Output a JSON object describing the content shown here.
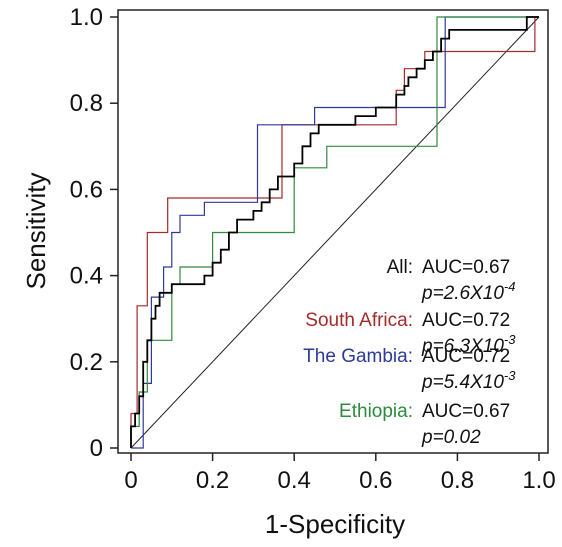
{
  "chart_data": {
    "type": "line",
    "title": "",
    "xlabel": "1-Specificity",
    "ylabel": "Sensitivity",
    "xlim": [
      0,
      1
    ],
    "ylim": [
      0,
      1
    ],
    "x_ticks": [
      "0",
      "0.2",
      "0.4",
      "0.6",
      "0.8",
      "1.0"
    ],
    "y_ticks": [
      "0",
      "0.2",
      "0.4",
      "0.6",
      "0.8",
      "1.0"
    ],
    "grid": false,
    "legend_position": "bottom-right",
    "series": [
      {
        "name": "All",
        "color": "#000000",
        "auc": "AUC=0.67",
        "p_base": "p=2.6X10",
        "p_exp": "-4",
        "points": [
          [
            0,
            0
          ],
          [
            0,
            0.05
          ],
          [
            0.01,
            0.05
          ],
          [
            0.01,
            0.08
          ],
          [
            0.02,
            0.08
          ],
          [
            0.02,
            0.12
          ],
          [
            0.03,
            0.12
          ],
          [
            0.03,
            0.2
          ],
          [
            0.04,
            0.2
          ],
          [
            0.04,
            0.25
          ],
          [
            0.05,
            0.25
          ],
          [
            0.05,
            0.3
          ],
          [
            0.06,
            0.3
          ],
          [
            0.06,
            0.33
          ],
          [
            0.07,
            0.33
          ],
          [
            0.07,
            0.36
          ],
          [
            0.1,
            0.36
          ],
          [
            0.1,
            0.38
          ],
          [
            0.18,
            0.38
          ],
          [
            0.18,
            0.4
          ],
          [
            0.2,
            0.4
          ],
          [
            0.2,
            0.43
          ],
          [
            0.22,
            0.43
          ],
          [
            0.22,
            0.46
          ],
          [
            0.24,
            0.46
          ],
          [
            0.24,
            0.5
          ],
          [
            0.26,
            0.5
          ],
          [
            0.26,
            0.53
          ],
          [
            0.3,
            0.53
          ],
          [
            0.3,
            0.55
          ],
          [
            0.32,
            0.55
          ],
          [
            0.32,
            0.57
          ],
          [
            0.34,
            0.57
          ],
          [
            0.34,
            0.6
          ],
          [
            0.36,
            0.6
          ],
          [
            0.36,
            0.63
          ],
          [
            0.4,
            0.63
          ],
          [
            0.4,
            0.66
          ],
          [
            0.42,
            0.66
          ],
          [
            0.42,
            0.7
          ],
          [
            0.44,
            0.7
          ],
          [
            0.44,
            0.73
          ],
          [
            0.46,
            0.73
          ],
          [
            0.46,
            0.75
          ],
          [
            0.55,
            0.75
          ],
          [
            0.55,
            0.77
          ],
          [
            0.6,
            0.77
          ],
          [
            0.6,
            0.79
          ],
          [
            0.65,
            0.79
          ],
          [
            0.65,
            0.82
          ],
          [
            0.67,
            0.82
          ],
          [
            0.67,
            0.84
          ],
          [
            0.68,
            0.84
          ],
          [
            0.68,
            0.86
          ],
          [
            0.7,
            0.86
          ],
          [
            0.7,
            0.88
          ],
          [
            0.72,
            0.88
          ],
          [
            0.72,
            0.9
          ],
          [
            0.74,
            0.9
          ],
          [
            0.74,
            0.92
          ],
          [
            0.76,
            0.92
          ],
          [
            0.76,
            0.95
          ],
          [
            0.78,
            0.95
          ],
          [
            0.78,
            0.97
          ],
          [
            0.97,
            0.97
          ],
          [
            0.97,
            1.0
          ],
          [
            1.0,
            1.0
          ]
        ]
      },
      {
        "name": "South Africa",
        "color": "#a52a2a",
        "auc": "AUC=0.72",
        "p_base": "p=6.3X10",
        "p_exp": "-3",
        "points": [
          [
            0,
            0
          ],
          [
            0,
            0.08
          ],
          [
            0.015,
            0.08
          ],
          [
            0.015,
            0.33
          ],
          [
            0.04,
            0.33
          ],
          [
            0.04,
            0.5
          ],
          [
            0.09,
            0.5
          ],
          [
            0.09,
            0.58
          ],
          [
            0.37,
            0.58
          ],
          [
            0.37,
            0.75
          ],
          [
            0.65,
            0.75
          ],
          [
            0.65,
            0.83
          ],
          [
            0.67,
            0.83
          ],
          [
            0.67,
            0.88
          ],
          [
            0.72,
            0.88
          ],
          [
            0.72,
            0.92
          ],
          [
            0.99,
            0.92
          ],
          [
            0.99,
            1.0
          ],
          [
            1.0,
            1.0
          ]
        ]
      },
      {
        "name": "The Gambia",
        "color": "#2e3a9a",
        "auc": "AUC=0.72",
        "p_base": "p=5.4X10",
        "p_exp": "-3",
        "points": [
          [
            0,
            0
          ],
          [
            0.03,
            0
          ],
          [
            0.03,
            0.15
          ],
          [
            0.05,
            0.15
          ],
          [
            0.05,
            0.35
          ],
          [
            0.08,
            0.35
          ],
          [
            0.08,
            0.42
          ],
          [
            0.1,
            0.42
          ],
          [
            0.1,
            0.5
          ],
          [
            0.12,
            0.5
          ],
          [
            0.12,
            0.54
          ],
          [
            0.18,
            0.54
          ],
          [
            0.18,
            0.57
          ],
          [
            0.31,
            0.57
          ],
          [
            0.31,
            0.75
          ],
          [
            0.45,
            0.75
          ],
          [
            0.45,
            0.79
          ],
          [
            0.77,
            0.79
          ],
          [
            0.77,
            1.0
          ],
          [
            1.0,
            1.0
          ]
        ]
      },
      {
        "name": "Ethiopia",
        "color": "#2e8b3e",
        "auc": "AUC=0.67",
        "p_base": "p=0.02",
        "p_exp": "",
        "points": [
          [
            0,
            0
          ],
          [
            0,
            0.05
          ],
          [
            0.02,
            0.05
          ],
          [
            0.02,
            0.13
          ],
          [
            0.04,
            0.13
          ],
          [
            0.04,
            0.25
          ],
          [
            0.1,
            0.25
          ],
          [
            0.1,
            0.38
          ],
          [
            0.12,
            0.38
          ],
          [
            0.12,
            0.42
          ],
          [
            0.2,
            0.42
          ],
          [
            0.2,
            0.5
          ],
          [
            0.4,
            0.5
          ],
          [
            0.4,
            0.65
          ],
          [
            0.48,
            0.65
          ],
          [
            0.48,
            0.7
          ],
          [
            0.75,
            0.7
          ],
          [
            0.75,
            1.0
          ],
          [
            1.0,
            1.0
          ]
        ]
      }
    ]
  }
}
